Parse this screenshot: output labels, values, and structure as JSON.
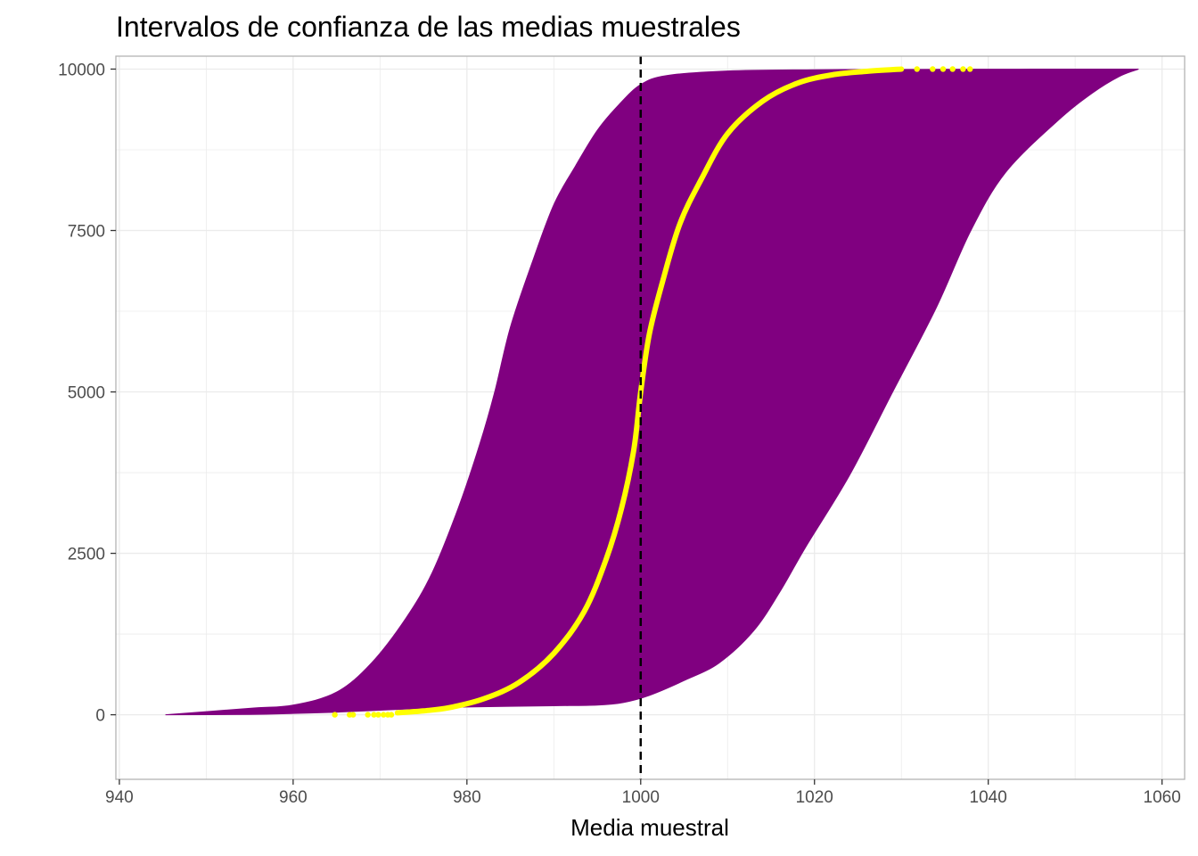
{
  "chart_data": {
    "type": "area",
    "title": "Intervalos de confianza de las medias muestrales",
    "xlabel": "Media muestral",
    "ylabel": "",
    "xlim": [
      939.6,
      1062.6
    ],
    "ylim": [
      -1000,
      10200
    ],
    "x_ticks": [
      940,
      960,
      980,
      1000,
      1020,
      1040,
      1060
    ],
    "y_ticks": [
      0,
      2500,
      5000,
      7500,
      10000
    ],
    "grid": true,
    "legend": "none",
    "reference_line": {
      "x": 1000,
      "style": "dashed",
      "color": "#000000"
    },
    "colors": {
      "band": "#800080",
      "means": "#ffff00",
      "grid": "#ebebeb",
      "border": "#b3b3b3"
    },
    "series": [
      {
        "kind": "ribbon",
        "lower": [
          [
            945.3,
            0
          ],
          [
            955,
            5
          ],
          [
            960,
            20
          ],
          [
            965,
            40
          ],
          [
            970,
            70
          ],
          [
            975,
            100
          ],
          [
            980,
            120
          ],
          [
            985,
            130
          ],
          [
            990,
            140
          ],
          [
            995,
            150
          ],
          [
            998,
            190
          ],
          [
            1001,
            300
          ],
          [
            1005,
            530
          ],
          [
            1009,
            800
          ],
          [
            1013,
            1300
          ],
          [
            1016,
            1900
          ],
          [
            1019,
            2600
          ],
          [
            1024,
            3700
          ],
          [
            1029,
            5000
          ],
          [
            1034,
            6300
          ],
          [
            1038,
            7500
          ],
          [
            1042,
            8400
          ],
          [
            1048,
            9200
          ],
          [
            1052,
            9630
          ],
          [
            1055,
            9880
          ],
          [
            1057.3,
            10000
          ]
        ],
        "upper": [
          [
            945.3,
            0
          ],
          [
            955,
            100
          ],
          [
            960,
            150
          ],
          [
            965,
            350
          ],
          [
            969,
            800
          ],
          [
            973,
            1500
          ],
          [
            976,
            2200
          ],
          [
            979,
            3200
          ],
          [
            981.5,
            4200
          ],
          [
            983.2,
            5000
          ],
          [
            985,
            6000
          ],
          [
            987.5,
            7000
          ],
          [
            990,
            7900
          ],
          [
            992.5,
            8500
          ],
          [
            995,
            9050
          ],
          [
            997.5,
            9450
          ],
          [
            1000,
            9760
          ],
          [
            1003,
            9900
          ],
          [
            1010,
            9970
          ],
          [
            1020,
            9990
          ],
          [
            1030,
            9995
          ],
          [
            1045,
            9999
          ],
          [
            1057.3,
            10000
          ]
        ]
      },
      {
        "kind": "points",
        "name": "",
        "curve": [
          [
            972,
            30
          ],
          [
            975,
            60
          ],
          [
            978,
            110
          ],
          [
            982,
            250
          ],
          [
            986,
            500
          ],
          [
            990,
            950
          ],
          [
            993.5,
            1600
          ],
          [
            996,
            2400
          ],
          [
            997.8,
            3200
          ],
          [
            999.2,
            4100
          ],
          [
            1000,
            5000
          ],
          [
            1001,
            5900
          ],
          [
            1002.5,
            6700
          ],
          [
            1004.5,
            7600
          ],
          [
            1007,
            8300
          ],
          [
            1010,
            9000
          ],
          [
            1014,
            9500
          ],
          [
            1018,
            9780
          ],
          [
            1022,
            9910
          ],
          [
            1026,
            9965
          ],
          [
            1030,
            10000
          ]
        ],
        "outliers_low": [
          [
            964.8,
            0
          ],
          [
            966.5,
            0
          ],
          [
            966.9,
            0
          ],
          [
            968.6,
            0
          ],
          [
            969.3,
            0
          ],
          [
            969.8,
            0
          ],
          [
            970.4,
            0
          ],
          [
            970.9,
            0
          ],
          [
            971.3,
            0
          ]
        ],
        "outliers_high": [
          [
            1031.8,
            10000
          ],
          [
            1033.6,
            10000
          ],
          [
            1034.8,
            10000
          ],
          [
            1035.9,
            10000
          ],
          [
            1037.1,
            10000
          ],
          [
            1037.9,
            10000
          ]
        ]
      }
    ]
  }
}
